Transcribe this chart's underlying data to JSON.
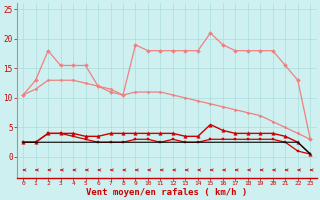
{
  "x": [
    0,
    1,
    2,
    3,
    4,
    5,
    6,
    7,
    8,
    9,
    10,
    11,
    12,
    13,
    14,
    15,
    16,
    17,
    18,
    19,
    20,
    21,
    22,
    23
  ],
  "series_rafales": [
    10.5,
    13,
    18,
    15.5,
    15.5,
    15.5,
    12,
    11,
    10.5,
    19,
    18,
    18,
    18,
    18,
    18,
    21,
    19,
    18,
    18,
    18,
    18,
    15.5,
    13,
    3
  ],
  "series_diag": [
    10.5,
    11.5,
    13,
    13,
    13,
    12.5,
    12,
    11.5,
    10.5,
    11,
    11,
    11,
    10.5,
    10,
    9.5,
    9,
    8.5,
    8,
    7.5,
    7,
    6,
    5,
    4,
    3
  ],
  "series_upper_red": [
    2.5,
    2.5,
    4,
    4,
    4,
    3.5,
    3.5,
    4,
    4,
    4,
    4,
    4,
    4,
    3.5,
    3.5,
    5.5,
    4.5,
    4,
    4,
    4,
    4,
    3.5,
    2.5,
    0.5
  ],
  "series_lower_red": [
    2.5,
    2.5,
    4,
    4,
    3.5,
    3,
    2.5,
    2.5,
    2.5,
    3,
    3,
    2.5,
    3,
    2.5,
    2.5,
    3,
    3,
    3,
    3,
    3,
    3,
    2.5,
    1,
    0.5
  ],
  "series_flat": [
    2.5,
    2.5,
    2.5,
    2.5,
    2.5,
    2.5,
    2.5,
    2.5,
    2.5,
    2.5,
    2.5,
    2.5,
    2.5,
    2.5,
    2.5,
    2.5,
    2.5,
    2.5,
    2.5,
    2.5,
    2.5,
    2.5,
    2.5,
    0.5
  ],
  "color_light": "#f08080",
  "color_dark": "#cc0000",
  "color_black": "#000000",
  "bg_color": "#cff0f0",
  "grid_color": "#aadddd",
  "xlabel": "Vent moyen/en rafales ( km/h )",
  "ylim": [
    0,
    26
  ],
  "yticks": [
    0,
    5,
    10,
    15,
    20,
    25
  ],
  "xticks": [
    0,
    1,
    2,
    3,
    4,
    5,
    6,
    7,
    8,
    9,
    10,
    11,
    12,
    13,
    14,
    15,
    16,
    17,
    18,
    19,
    20,
    21,
    22,
    23
  ]
}
